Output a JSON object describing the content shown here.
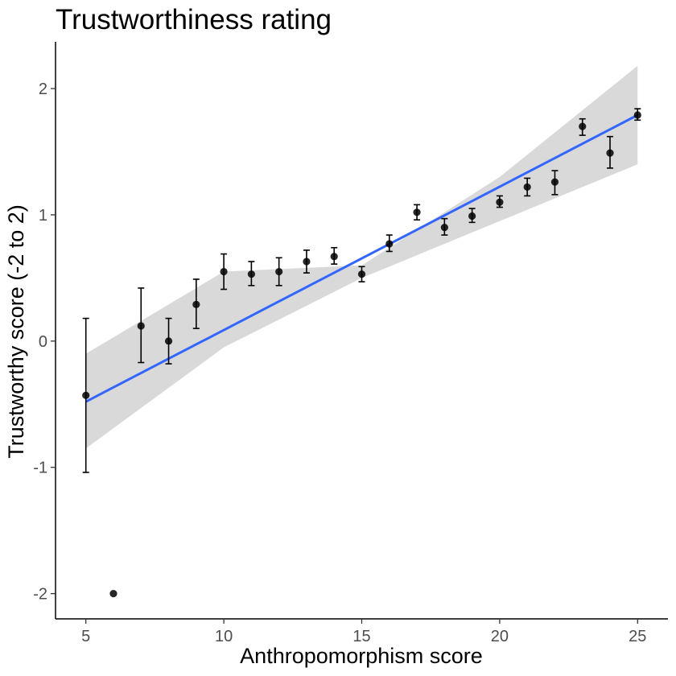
{
  "chart_data": {
    "type": "scatter",
    "title": "Trustworthiness rating",
    "xlabel": "Anthropomorphism score",
    "ylabel": "Trustworthy score (-2 to 2)",
    "xlim": [
      3.9,
      26.1
    ],
    "ylim": [
      -2.2,
      2.37
    ],
    "xticks": [
      5,
      10,
      15,
      20,
      25
    ],
    "yticks": [
      -2,
      -1,
      0,
      1,
      2
    ],
    "grid": false,
    "points": [
      {
        "x": 5,
        "y": -0.43,
        "lo": -1.04,
        "hi": 0.18
      },
      {
        "x": 6,
        "y": -2.0,
        "lo": null,
        "hi": null
      },
      {
        "x": 7,
        "y": 0.12,
        "lo": -0.17,
        "hi": 0.42
      },
      {
        "x": 8,
        "y": 0.0,
        "lo": -0.18,
        "hi": 0.18
      },
      {
        "x": 9,
        "y": 0.29,
        "lo": 0.1,
        "hi": 0.49
      },
      {
        "x": 10,
        "y": 0.55,
        "lo": 0.41,
        "hi": 0.69
      },
      {
        "x": 11,
        "y": 0.53,
        "lo": 0.44,
        "hi": 0.63
      },
      {
        "x": 12,
        "y": 0.55,
        "lo": 0.44,
        "hi": 0.66
      },
      {
        "x": 13,
        "y": 0.63,
        "lo": 0.54,
        "hi": 0.72
      },
      {
        "x": 14,
        "y": 0.67,
        "lo": 0.61,
        "hi": 0.74
      },
      {
        "x": 15,
        "y": 0.53,
        "lo": 0.47,
        "hi": 0.59
      },
      {
        "x": 16,
        "y": 0.77,
        "lo": 0.71,
        "hi": 0.84
      },
      {
        "x": 17,
        "y": 1.02,
        "lo": 0.96,
        "hi": 1.08
      },
      {
        "x": 18,
        "y": 0.9,
        "lo": 0.84,
        "hi": 0.97
      },
      {
        "x": 19,
        "y": 0.99,
        "lo": 0.94,
        "hi": 1.05
      },
      {
        "x": 20,
        "y": 1.1,
        "lo": 1.06,
        "hi": 1.15
      },
      {
        "x": 21,
        "y": 1.22,
        "lo": 1.15,
        "hi": 1.29
      },
      {
        "x": 22,
        "y": 1.26,
        "lo": 1.16,
        "hi": 1.35
      },
      {
        "x": 23,
        "y": 1.7,
        "lo": 1.63,
        "hi": 1.76
      },
      {
        "x": 24,
        "y": 1.49,
        "lo": 1.37,
        "hi": 1.62
      },
      {
        "x": 25,
        "y": 1.79,
        "lo": 1.75,
        "hi": 1.84
      }
    ],
    "fit_line": {
      "x": [
        5,
        25
      ],
      "y": [
        -0.48,
        1.79
      ],
      "color": "#3366ff"
    },
    "confidence_band": {
      "x": [
        5,
        10,
        15,
        20,
        25
      ],
      "lower": [
        -0.85,
        -0.05,
        0.5,
        0.95,
        1.4
      ],
      "upper": [
        -0.1,
        0.55,
        0.6,
        1.3,
        2.18
      ],
      "color": "#d9d9d9"
    },
    "point_color": "#000000"
  }
}
